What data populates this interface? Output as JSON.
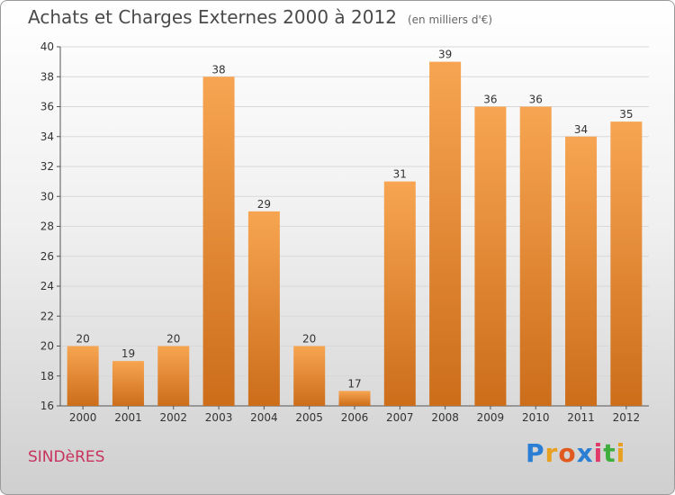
{
  "chart_data": {
    "type": "bar",
    "title": "Achats et Charges Externes 2000 à 2012",
    "subtitle": "(en milliers d'€)",
    "categories": [
      "2000",
      "2001",
      "2002",
      "2003",
      "2004",
      "2005",
      "2006",
      "2007",
      "2008",
      "2009",
      "2010",
      "2011",
      "2012"
    ],
    "values": [
      20,
      19,
      20,
      38,
      29,
      20,
      17,
      31,
      39,
      36,
      36,
      34,
      35
    ],
    "ylim": [
      16,
      40
    ],
    "yticks": [
      16,
      18,
      20,
      22,
      24,
      26,
      28,
      30,
      32,
      34,
      36,
      38,
      40
    ],
    "grid": true,
    "bar_color": "#f0913a",
    "xlabel": "",
    "ylabel": ""
  },
  "footer": {
    "town": "SINDèRES"
  },
  "logo": {
    "letters": [
      "P",
      "r",
      "o",
      "x",
      "i",
      "t",
      "i"
    ],
    "colors": [
      "#2a7fd4",
      "#e8a020",
      "#e05a20",
      "#2a7fd4",
      "#e03a6a",
      "#3fae3f",
      "#e8a020"
    ]
  }
}
